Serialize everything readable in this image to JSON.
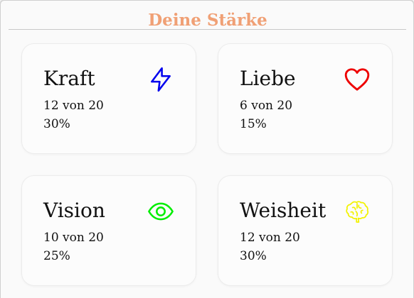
{
  "header": {
    "title": "Deine Stärke"
  },
  "strengths": [
    {
      "name": "Kraft",
      "count": "12 von 20",
      "percent": "30%",
      "icon": "lightning-icon",
      "color": "#0000ee"
    },
    {
      "name": "Liebe",
      "count": "6 von 20",
      "percent": "15%",
      "icon": "heart-icon",
      "color": "#ee0000"
    },
    {
      "name": "Vision",
      "count": "10 von 20",
      "percent": "25%",
      "icon": "eye-icon",
      "color": "#00ee00"
    },
    {
      "name": "Weisheit",
      "count": "12 von 20",
      "percent": "30%",
      "icon": "brain-icon",
      "color": "#f2f200"
    }
  ],
  "colors": {
    "title": "#f0a075"
  }
}
